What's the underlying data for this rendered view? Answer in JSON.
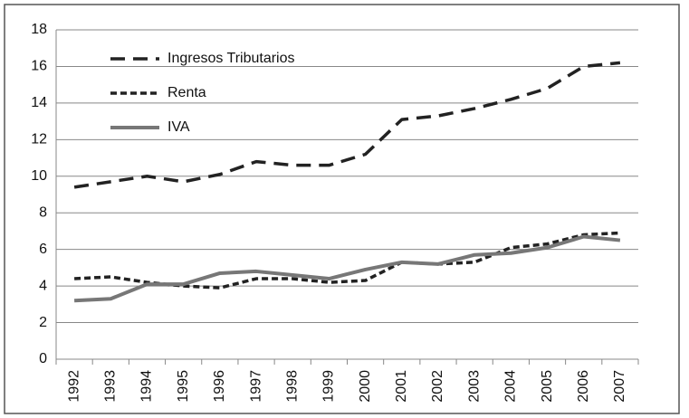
{
  "chart_data": {
    "type": "line",
    "categories": [
      "1992",
      "1993",
      "1994",
      "1995",
      "1996",
      "1997",
      "1998",
      "1999",
      "2000",
      "2001",
      "2002",
      "2003",
      "2004",
      "2005",
      "2006",
      "2007"
    ],
    "series": [
      {
        "name": "Ingresos Tributarios",
        "color": "#222222",
        "dash": "long",
        "values": [
          9.4,
          9.7,
          10.0,
          9.7,
          10.1,
          10.8,
          10.6,
          10.6,
          11.2,
          13.1,
          13.3,
          13.7,
          14.2,
          14.8,
          16.0,
          16.2
        ]
      },
      {
        "name": "Renta",
        "color": "#222222",
        "dash": "short",
        "values": [
          4.4,
          4.5,
          4.2,
          4.0,
          3.9,
          4.4,
          4.4,
          4.2,
          4.3,
          5.3,
          5.2,
          5.3,
          6.1,
          6.3,
          6.8,
          6.9
        ]
      },
      {
        "name": "IVA",
        "color": "#777777",
        "dash": "solid",
        "values": [
          3.2,
          3.3,
          4.1,
          4.1,
          4.7,
          4.8,
          4.6,
          4.4,
          4.9,
          5.3,
          5.2,
          5.7,
          5.8,
          6.1,
          6.7,
          6.5
        ]
      }
    ],
    "ylim": [
      0,
      18
    ],
    "yticks": [
      0,
      2,
      4,
      6,
      8,
      10,
      12,
      14,
      16,
      18
    ],
    "grid": true,
    "legend": "top-left"
  }
}
